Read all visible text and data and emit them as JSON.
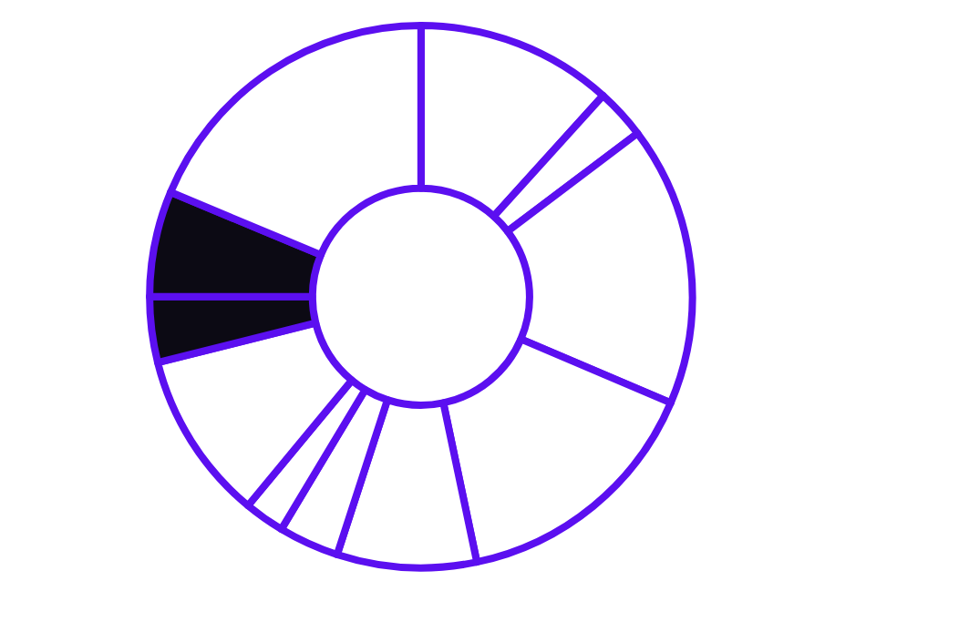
{
  "chart_data": {
    "type": "donut",
    "categories": [
      null,
      null,
      null,
      null,
      null,
      null,
      null,
      null,
      null,
      null,
      null
    ],
    "values": [
      11.7,
      3.0,
      16.7,
      15.3,
      8.3,
      3.6,
      2.4,
      10.1,
      3.9,
      6.3,
      18.7
    ],
    "colors": [
      "#ffffff",
      "#ffffff",
      "#ffffff",
      "#ffffff",
      "#ffffff",
      "#ffffff",
      "#ffffff",
      "#ffffff",
      "#0c0a14",
      "#0c0a14",
      "#ffffff"
    ],
    "legend": false
  }
}
